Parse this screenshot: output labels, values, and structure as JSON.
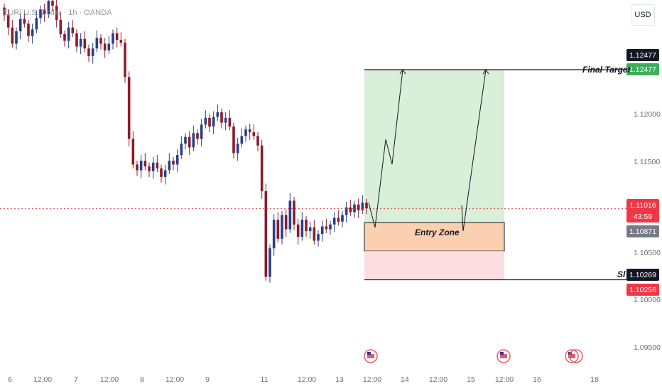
{
  "legend": "EUR/ U.S. Dollar · 1h · OANDA",
  "currency_button": "USD",
  "y_ticks": [
    "1.12000",
    "1.11500",
    "1.10500",
    "1.10000",
    "1.09500"
  ],
  "price_tags": {
    "final_target_black": "1.12477",
    "final_target_green": "1.12477",
    "current_price": "1.11016",
    "countdown": "43:59",
    "entry_price": "1.10871",
    "sl_black": "1.10269",
    "sl_red": "1.10256"
  },
  "x_ticks": [
    "6",
    "12:00",
    "7",
    "12:00",
    "8",
    "12:00",
    "9",
    "11",
    "12:00",
    "13",
    "12:00",
    "14",
    "12:00",
    "15",
    "12:00",
    "16",
    "18"
  ],
  "annotations": {
    "final_target": "Final Target",
    "entry_zone": "Entry Zone",
    "sl": "Sl"
  },
  "colors": {
    "up_candle": "#2a3f85",
    "down_candle": "#8a1c2c",
    "target_zone": "#d9efd7",
    "entry_zone": "#fbd0b0",
    "stop_zone": "#fcdde1",
    "current_price_line": "#e0383a",
    "green_tag": "#3dae5a",
    "red_tag": "#f23645",
    "grey_tag": "#787b86"
  },
  "chart_data": {
    "type": "candlestick",
    "symbol": "EUR/ U.S. Dollar",
    "interval": "1h",
    "ylim": [
      1.092,
      1.132
    ],
    "levels": {
      "final_target": 1.12477,
      "current": 1.11016,
      "entry_top": 1.10871,
      "entry_bottom": 1.10571,
      "stop_loss": 1.10269
    },
    "closes": [
      1.1305,
      1.1292,
      1.1275,
      1.1288,
      1.1301,
      1.1296,
      1.1283,
      1.129,
      1.1302,
      1.1311,
      1.1306,
      1.132,
      1.1315,
      1.13,
      1.1285,
      1.1278,
      1.1292,
      1.1286,
      1.1272,
      1.128,
      1.127,
      1.1262,
      1.127,
      1.1281,
      1.1275,
      1.1268,
      1.1275,
      1.1286,
      1.1279,
      1.1276,
      1.124,
      1.1175,
      1.1148,
      1.1142,
      1.1152,
      1.1146,
      1.1141,
      1.115,
      1.1144,
      1.1135,
      1.1142,
      1.1152,
      1.1148,
      1.1158,
      1.117,
      1.1177,
      1.1166,
      1.1181,
      1.1175,
      1.119,
      1.1197,
      1.1188,
      1.1198,
      1.1203,
      1.1192,
      1.1197,
      1.1188,
      1.116,
      1.117,
      1.1178,
      1.1185,
      1.1182,
      1.1178,
      1.1168,
      1.112,
      1.103,
      1.106,
      1.109,
      1.107,
      1.1095,
      1.108,
      1.111,
      1.1085,
      1.1072,
      1.109,
      1.1078,
      1.1082,
      1.1068,
      1.1075,
      1.1083,
      1.108,
      1.1085,
      1.1092,
      1.1088,
      1.1095,
      1.1103,
      1.1098,
      1.1106,
      1.11,
      1.1108,
      1.1102
    ]
  }
}
